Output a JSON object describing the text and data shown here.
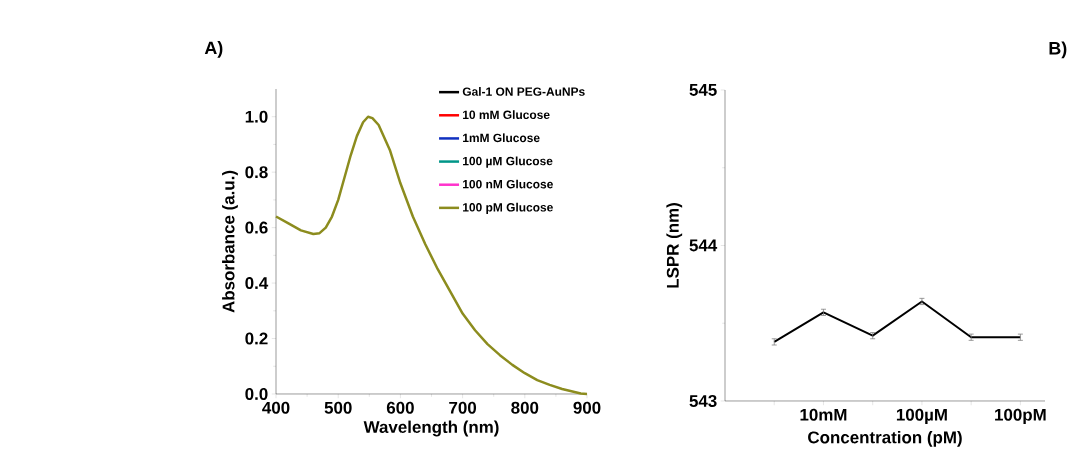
{
  "chart_data": [
    {
      "type": "line",
      "title": "A)",
      "xlabel": "Wavelength (nm)",
      "ylabel": "Absorbance (a.u.)",
      "x": [
        400,
        420,
        440,
        460,
        470,
        480,
        490,
        500,
        510,
        520,
        530,
        540,
        548,
        555,
        565,
        583,
        600,
        620,
        640,
        660,
        680,
        700,
        720,
        740,
        760,
        780,
        800,
        820,
        840,
        860,
        880,
        890,
        900
      ],
      "series": [
        {
          "name": "Gal-1 ON PEG-AuNPs",
          "color": "#000000",
          "values": [
            null,
            null,
            null,
            null,
            null,
            null,
            null,
            null,
            null,
            null,
            null,
            null,
            null,
            null,
            null,
            null,
            null,
            null,
            null,
            null,
            null,
            null,
            null,
            null,
            null,
            null,
            null,
            null,
            null,
            null,
            null,
            null,
            null
          ]
        },
        {
          "name": "10 mM Glucose",
          "color": "#ff0000",
          "values": [
            null,
            null,
            null,
            null,
            null,
            null,
            null,
            null,
            null,
            null,
            null,
            null,
            null,
            null,
            null,
            null,
            null,
            null,
            null,
            null,
            null,
            null,
            null,
            null,
            null,
            null,
            null,
            null,
            null,
            null,
            null,
            null,
            null
          ]
        },
        {
          "name": "1mM Glucose",
          "color": "#1030c0",
          "values": [
            null,
            null,
            null,
            null,
            null,
            null,
            null,
            null,
            null,
            null,
            null,
            null,
            null,
            null,
            null,
            null,
            null,
            null,
            null,
            null,
            null,
            null,
            null,
            null,
            null,
            null,
            null,
            null,
            null,
            null,
            null,
            null,
            null
          ]
        },
        {
          "name": "100 µM Glucose",
          "color": "#009688",
          "values": [
            null,
            null,
            null,
            null,
            null,
            null,
            null,
            null,
            null,
            null,
            null,
            null,
            null,
            null,
            null,
            null,
            null,
            null,
            null,
            null,
            null,
            null,
            null,
            null,
            null,
            null,
            null,
            null,
            null,
            null,
            null,
            null,
            null
          ]
        },
        {
          "name": "100 nM Glucose",
          "color": "#ff33cc",
          "values": [
            null,
            null,
            null,
            null,
            null,
            null,
            null,
            null,
            null,
            null,
            null,
            null,
            null,
            null,
            null,
            null,
            null,
            null,
            null,
            null,
            null,
            null,
            null,
            null,
            null,
            null,
            null,
            null,
            null,
            null,
            null,
            null,
            null
          ]
        },
        {
          "name": "100 pM Glucose",
          "color": "#8c8c1e",
          "values": [
            0.64,
            0.615,
            0.59,
            0.577,
            0.58,
            0.6,
            0.64,
            0.7,
            0.78,
            0.86,
            0.93,
            0.98,
            1.0,
            0.995,
            0.97,
            0.88,
            0.76,
            0.64,
            0.54,
            0.45,
            0.37,
            0.29,
            0.23,
            0.18,
            0.14,
            0.105,
            0.075,
            0.05,
            0.033,
            0.018,
            0.007,
            0.002,
            0.0
          ]
        }
      ],
      "xlim": [
        400,
        900
      ],
      "ylim": [
        0,
        1.1
      ],
      "xticks": [
        400,
        500,
        600,
        700,
        800,
        900
      ],
      "yticks": [
        {
          "value": 0,
          "label": "0.0"
        },
        {
          "value": 0.2,
          "label": "0.2"
        },
        {
          "value": 0.4,
          "label": "0.4"
        },
        {
          "value": 0.6,
          "label": "0.6"
        },
        {
          "value": 0.8,
          "label": "0.8"
        },
        {
          "value": 1.0,
          "label": "1.0"
        }
      ],
      "legend": "top right"
    },
    {
      "type": "line",
      "title": "B)",
      "xlabel": "Concentration (pM)",
      "ylabel": "LSPR (nm)",
      "categories": [
        null,
        "10mM",
        null,
        "100µM",
        null,
        "100pM"
      ],
      "series": [
        {
          "color": "#000000",
          "values": [
            543.38,
            543.57,
            543.42,
            543.64,
            543.41,
            543.41
          ],
          "errors": [
            0.02,
            0.02,
            0.02,
            0.02,
            0.02,
            0.02
          ]
        }
      ],
      "ylim": [
        543,
        545
      ],
      "yticks": [
        543,
        544,
        545
      ]
    }
  ]
}
